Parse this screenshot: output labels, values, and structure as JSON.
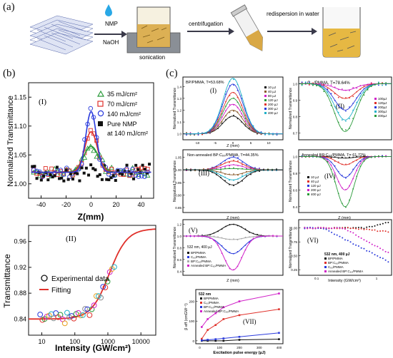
{
  "panel_labels": {
    "a": "(a)",
    "b": "(b)",
    "c": "(c)"
  },
  "scheme": {
    "reagent_top": "NMP",
    "reagent_bottom": "NaOH",
    "step1": "sonication",
    "step2": "centrifugation",
    "step3": "redispersion in water"
  },
  "colors": {
    "green": "#2a9a3a",
    "red": "#e0302a",
    "blue": "#2a3adc",
    "magenta": "#d020c8",
    "black": "#111111",
    "gray": "#888888"
  },
  "b1": {
    "roman": "(I)",
    "ylabel": "Normalized Transmittance",
    "xlabel": "Z(mm)",
    "yticks": [
      "1.00",
      "1.05",
      "1.10",
      "1.15"
    ],
    "xticks": [
      "-40",
      "-20",
      "0",
      "20",
      "40"
    ],
    "legend": [
      "35 mJ/cm²",
      "70 mJ/cm²",
      "140 mJ/cm²",
      "Pure NMP",
      "at 140 mJ/cm²"
    ]
  },
  "b2": {
    "roman": "(II)",
    "ylabel": "Transmittance",
    "xlabel": "Intensity (GW/cm²)",
    "yticks": [
      "0.84",
      "0.88",
      "0.92",
      "0.96"
    ],
    "xticks": [
      "10",
      "100",
      "1000",
      "10000"
    ],
    "legend": [
      "Experimental data",
      "Fitting"
    ]
  },
  "c": {
    "p1": {
      "roman": "(I)",
      "title": "BP/PMMA, T=53.68%",
      "ylabel": "Normalized Transmittance",
      "xlabel": "Z (mm)",
      "legend": [
        "10 µJ",
        "40 µJ",
        "80 µJ",
        "120 µJ",
        "200 µJ",
        "300 µJ",
        "400 µJ"
      ],
      "yticks": [
        "1.0",
        "1.1",
        "1.2",
        "1.3",
        "1.4"
      ],
      "xticks": [
        "-10",
        "-5",
        "0",
        "5",
        "10"
      ]
    },
    "p2": {
      "roman": "(II)",
      "title": "C₆₀/PMMA, T=78.64%",
      "ylabel": "Normalized Transmittance",
      "xlabel": "Z (mm)",
      "legend": [
        "100µJ",
        "120µJ",
        "200µJ",
        "300µJ",
        "400µJ"
      ],
      "yticks": [
        "0.7",
        "0.8",
        "0.9",
        "1.0"
      ]
    },
    "p3": {
      "roman": "(III)",
      "title": "Non-annealed BP:C₆₀/PMMA, T=44.35%",
      "ylabel": "Normalized Transmittance",
      "xlabel": "Z (mm)",
      "yticks": [
        "0.85",
        "0.90",
        "0.95",
        "1.00",
        "1.05"
      ]
    },
    "p4": {
      "roman": "(IV)",
      "title": "Annealed BP:C₆₀/PMMA, T= 61.72%",
      "ylabel": "Normalized Transmittance",
      "xlabel": "Z (mm)",
      "legend": [
        "10 µJ",
        "40 µJ",
        "120 µJ",
        "200 µJ",
        "400 µJ"
      ],
      "yticks": [
        "0.4",
        "0.6",
        "0.8",
        "1.0"
      ]
    },
    "p5": {
      "roman": "(V)",
      "ylabel": "Normalized Transmittance",
      "xlabel": "Z (mm)",
      "caption": "532 nm, 400 µJ",
      "legend": [
        "BP/PMMA",
        "C₆₀/PMMA",
        "BP:C₆₀/PMMA",
        "Annealed BP:C₆₀/PMMA"
      ],
      "yticks": [
        "0.4",
        "0.6",
        "0.8",
        "1.0",
        "1.2"
      ]
    },
    "p6": {
      "roman": "(VI)",
      "ylabel": "Normalized Transmittance",
      "xlabel": "Intensity (GW/cm²)",
      "caption": "532 nm, 400 µJ",
      "legend": [
        "BP/PMMA",
        "BP:C₆₀/PMMA",
        "C₆₀/PMMA",
        "Annealed BP:C₆₀/PMMA"
      ],
      "yticks": [
        "0.25",
        "0.50",
        "0.75",
        "1.00"
      ],
      "xticks": [
        "0.1",
        "1"
      ]
    },
    "p7": {
      "roman": "(VII)",
      "ylabel": "β eff (cmGW⁻¹)",
      "xlabel": "Excitation pulse energy (µJ)",
      "caption": "532 nm",
      "legend": [
        "BP/PMMA",
        "C₆₀/PMMA",
        "BP:C₆₀/PMMA",
        "Annealed BP:C₆₀/PMMA"
      ],
      "xticks": [
        "0",
        "100",
        "200",
        "300",
        "400"
      ],
      "yticks": [
        "0",
        "100",
        "200"
      ]
    }
  }
}
